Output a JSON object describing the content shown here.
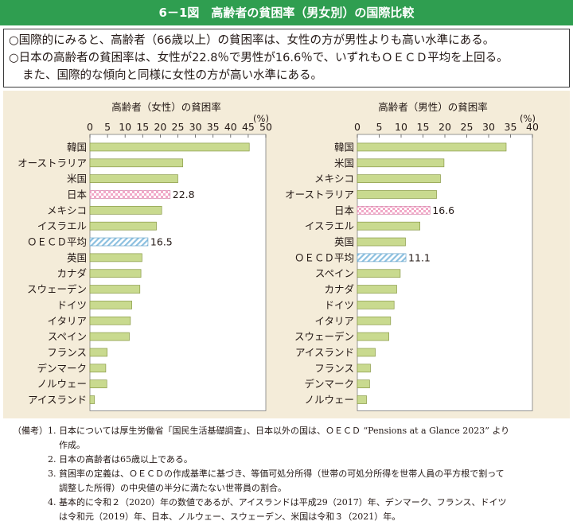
{
  "figure_title": "6－1図　高齢者の貧困率（男女別）の国際比較",
  "summary": {
    "line1": "○国際的にみると、高齢者（66歳以上）の貧困率は、女性の方が男性よりも高い水準にある。",
    "line2": "○日本の高齢者の貧困率は、女性が22.8％で男性が16.6％で、いずれもＯＥＣＤ平均を上回る。",
    "line3": "また、国際的な傾向と同様に女性の方が高い水準にある。"
  },
  "colors": {
    "header": "#2f9e50",
    "bar_fill": "#c9da8f",
    "bar_stroke": "#8a9a48",
    "japan_fill": "#f4b6d0",
    "oecd_fill": "#d2e6f3",
    "panel_bg": "#f4ecd9"
  },
  "chart_data": [
    {
      "type": "bar",
      "orientation": "horizontal",
      "title": "高齢者（女性）の貧困率",
      "unit": "(%)",
      "xlim": [
        0,
        50
      ],
      "ticks": [
        0,
        5,
        10,
        15,
        20,
        25,
        30,
        35,
        40,
        45,
        50
      ],
      "categories": [
        "韓国",
        "オーストラリア",
        "米国",
        "日本",
        "メキシコ",
        "イスラエル",
        "ＯＥＣＤ平均",
        "英国",
        "カナダ",
        "スウェーデン",
        "ドイツ",
        "イタリア",
        "スペイン",
        "フランス",
        "デンマーク",
        "ノルウェー",
        "アイスランド"
      ],
      "values": [
        45.3,
        26.4,
        25.0,
        22.8,
        20.4,
        18.9,
        16.5,
        14.8,
        14.5,
        14.2,
        11.9,
        11.5,
        11.2,
        4.9,
        4.5,
        4.8,
        1.3
      ],
      "highlights": {
        "日本": "japan",
        "ＯＥＣＤ平均": "oecd"
      },
      "data_labels": {
        "日本": "22.8",
        "ＯＥＣＤ平均": "16.5"
      }
    },
    {
      "type": "bar",
      "orientation": "horizontal",
      "title": "高齢者（男性）の貧困率",
      "unit": "(%)",
      "xlim": [
        0,
        40
      ],
      "ticks": [
        0,
        5,
        10,
        15,
        20,
        25,
        30,
        35,
        40
      ],
      "categories": [
        "韓国",
        "米国",
        "メキシコ",
        "オーストラリア",
        "日本",
        "イスラエル",
        "英国",
        "ＯＥＣＤ平均",
        "スペイン",
        "カナダ",
        "ドイツ",
        "イタリア",
        "スウェーデン",
        "アイスランド",
        "フランス",
        "デンマーク",
        "ノルウェー"
      ],
      "values": [
        34.0,
        19.8,
        19.0,
        18.1,
        16.6,
        14.3,
        11.0,
        11.1,
        9.8,
        9.0,
        8.4,
        7.6,
        7.2,
        4.1,
        3.0,
        2.8,
        2.1
      ],
      "highlights": {
        "日本": "japan",
        "ＯＥＣＤ平均": "oecd"
      },
      "data_labels": {
        "日本": "16.6",
        "ＯＥＣＤ平均": "11.1"
      }
    }
  ],
  "notes": {
    "lead": "（備考）",
    "items": [
      {
        "num": "1.",
        "text": "日本については厚生労働省「国民生活基礎調査」、日本以外の国は、ＯＥＣＤ “Pensions at a Glance 2023” より",
        "cont": "作成。"
      },
      {
        "num": "2.",
        "text": "日本の高齢者は65歳以上である。",
        "cont": ""
      },
      {
        "num": "3.",
        "text": "貧困率の定義は、ＯＥＣＤの作成基準に基づき、等価可処分所得（世帯の可処分所得を世帯人員の平方根で割って",
        "cont": "調整した所得）の中央値の半分に満たない世帯員の割合。"
      },
      {
        "num": "4.",
        "text": "基本的に令和２（2020）年の数値であるが、アイスランドは平成29（2017）年、デンマーク、フランス、ドイツ",
        "cont": "は令和元（2019）年、日本、ノルウェー、スウェーデン、米国は令和３（2021）年。"
      }
    ]
  }
}
